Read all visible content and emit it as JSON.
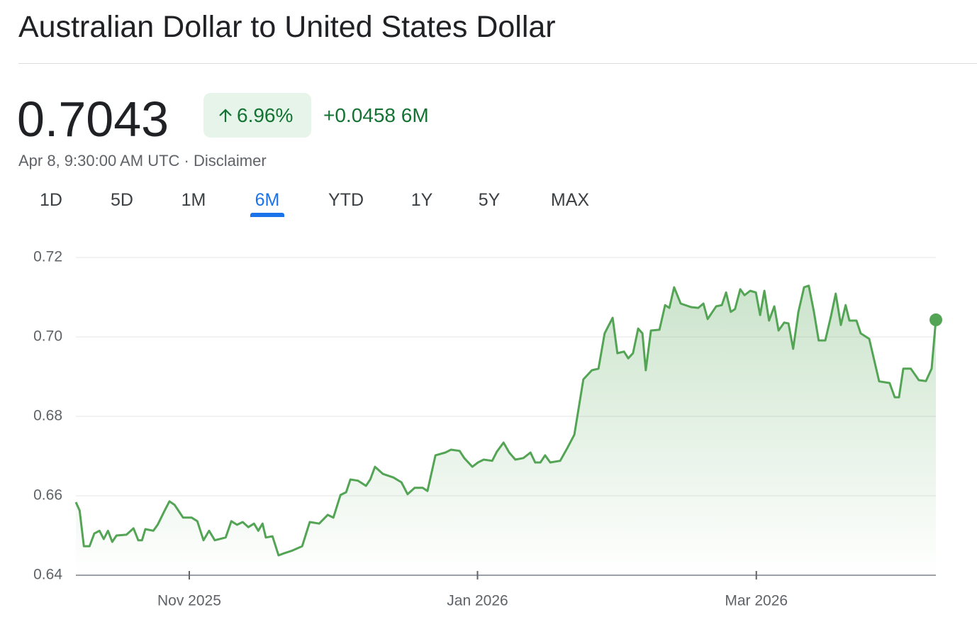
{
  "header": {
    "title": "Australian Dollar to United States Dollar",
    "price": "0.7043",
    "change_percent": "6.96%",
    "change_abs": "+0.0458 6M",
    "timestamp": "Apr 8, 9:30:00 AM UTC",
    "disclaimer": "Disclaimer"
  },
  "ranges": [
    "1D",
    "5D",
    "1M",
    "6M",
    "YTD",
    "1Y",
    "5Y",
    "MAX"
  ],
  "selected_range": "6M",
  "chart_data": {
    "type": "line",
    "color": "#53a455",
    "grid": true,
    "xlim": [
      0,
      182
    ],
    "xticks": [
      {
        "value": 24,
        "label": "Nov 2025"
      },
      {
        "value": 85,
        "label": "Jan 2026"
      },
      {
        "value": 144,
        "label": "Mar 2026"
      }
    ],
    "ylim": [
      0.64,
      0.72
    ],
    "yticks": [
      {
        "value": 0.64,
        "label": "0.64"
      },
      {
        "value": 0.66,
        "label": "0.66"
      },
      {
        "value": 0.68,
        "label": "0.68"
      },
      {
        "value": 0.7,
        "label": "0.70"
      },
      {
        "value": 0.72,
        "label": "0.72"
      }
    ],
    "x": [
      0,
      0.8,
      1.7,
      2.9,
      3.9,
      5.0,
      5.9,
      6.8,
      7.7,
      8.6,
      10.7,
      12.2,
      13.2,
      14.0,
      14.7,
      16.4,
      17.3,
      18.8,
      19.8,
      20.9,
      22.7,
      24.5,
      25.7,
      27.0,
      28.2,
      29.4,
      31.7,
      32.9,
      34.1,
      35.3,
      36.5,
      37.7,
      38.6,
      39.5,
      40.2,
      41.6,
      42.9,
      44.0,
      45.8,
      47.9,
      49.5,
      51.5,
      53.3,
      54.5,
      56.0,
      57.2,
      58.1,
      59.7,
      61.4,
      62.3,
      63.3,
      65.0,
      67.2,
      68.9,
      70.2,
      71.7,
      73.4,
      74.4,
      76.1,
      78.2,
      79.4,
      81.2,
      82.2,
      83.9,
      85.1,
      86.3,
      88.1,
      89.1,
      90.5,
      91.7,
      93.0,
      94.7,
      96.2,
      97.2,
      98.3,
      99.3,
      100.4,
      102.5,
      104.0,
      105.5,
      107.4,
      109.2,
      110.6,
      111.9,
      113.6,
      114.6,
      116.0,
      116.9,
      117.9,
      119.0,
      119.9,
      120.6,
      121.7,
      123.5,
      124.7,
      125.6,
      126.6,
      128.0,
      130.2,
      131.7,
      132.8,
      133.7,
      135.5,
      136.7,
      137.6,
      138.6,
      139.5,
      140.6,
      141.5,
      142.7,
      143.9,
      144.8,
      145.7,
      146.7,
      147.8,
      148.7,
      149.9,
      150.8,
      151.8,
      152.9,
      154.1,
      155.1,
      156.2,
      157.2,
      158.6,
      159.8,
      160.8,
      161.9,
      162.9,
      163.7,
      165.2,
      166.1,
      167.9,
      170.0,
      172.2,
      173.3,
      174.2,
      175.1,
      176.7,
      178.4,
      179.9,
      181.1,
      182.0
    ],
    "values": [
      0.6584,
      0.6563,
      0.6473,
      0.6473,
      0.6505,
      0.6512,
      0.6491,
      0.6512,
      0.6484,
      0.65,
      0.6502,
      0.6518,
      0.6488,
      0.6488,
      0.6516,
      0.6512,
      0.6527,
      0.6563,
      0.6586,
      0.6577,
      0.6545,
      0.6545,
      0.6536,
      0.6488,
      0.6512,
      0.6488,
      0.6495,
      0.6536,
      0.6527,
      0.6534,
      0.6521,
      0.653,
      0.6512,
      0.653,
      0.6495,
      0.6498,
      0.645,
      0.6455,
      0.6462,
      0.6473,
      0.6534,
      0.653,
      0.6552,
      0.6545,
      0.6602,
      0.6609,
      0.6641,
      0.6638,
      0.6625,
      0.6641,
      0.6673,
      0.6655,
      0.6646,
      0.6634,
      0.6604,
      0.662,
      0.662,
      0.6612,
      0.6702,
      0.6709,
      0.6716,
      0.6713,
      0.6695,
      0.6673,
      0.6684,
      0.6691,
      0.6688,
      0.6711,
      0.6734,
      0.6709,
      0.6691,
      0.6695,
      0.6709,
      0.6684,
      0.6684,
      0.6702,
      0.6684,
      0.6688,
      0.672,
      0.6754,
      0.6893,
      0.6916,
      0.692,
      0.7009,
      0.7048,
      0.6959,
      0.6963,
      0.6946,
      0.6959,
      0.7021,
      0.7009,
      0.6916,
      0.7016,
      0.7018,
      0.708,
      0.7073,
      0.7125,
      0.7084,
      0.7075,
      0.7073,
      0.7084,
      0.7045,
      0.7077,
      0.708,
      0.7112,
      0.7063,
      0.707,
      0.712,
      0.7105,
      0.7116,
      0.7112,
      0.7055,
      0.7116,
      0.7041,
      0.7077,
      0.7016,
      0.7036,
      0.7034,
      0.697,
      0.7063,
      0.7125,
      0.7129,
      0.7063,
      0.6991,
      0.6991,
      0.7052,
      0.7109,
      0.703,
      0.708,
      0.7041,
      0.7041,
      0.7009,
      0.6995,
      0.6888,
      0.6884,
      0.6848,
      0.6848,
      0.692,
      0.692,
      0.6891,
      0.6889,
      0.692,
      0.7043
    ]
  }
}
